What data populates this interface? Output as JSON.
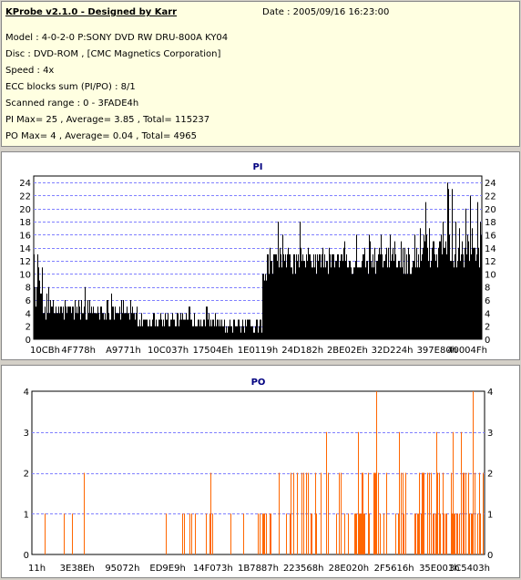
{
  "header": {
    "title": "KProbe v2.1.0 - Designed by Karr",
    "date": "Date : 2005/09/16 16:23:00",
    "lines": [
      "Model : 4-0-2-0 P:SONY    DVD RW DRU-800A  KY04",
      "Disc : DVD-ROM ,  [CMC Magnetics Corporation]",
      "Speed : 4x",
      "ECC blocks sum (PI/PO) : 8/1",
      "Scanned range : 0 - 3FADE4h",
      "PI Max= 25 , Average= 3.85 , Total= 115237",
      "PO Max= 4 , Average= 0.04 , Total= 4965"
    ]
  },
  "chart_data": [
    {
      "type": "bar",
      "title": "PI",
      "color": "#000000",
      "ylim": [
        0,
        25
      ],
      "yticks": [
        0,
        2,
        4,
        6,
        8,
        10,
        12,
        14,
        16,
        18,
        20,
        22,
        24
      ],
      "xticks": [
        "10CBh",
        "4F778h",
        "A9771h",
        "10C037h",
        "17504Eh",
        "1E0119h",
        "24D182h",
        "2BE02Eh",
        "32D224h",
        "397E80h",
        "40004Fh"
      ],
      "grid": true,
      "segments": [
        {
          "from": 0.0,
          "to": 0.02,
          "min": 4,
          "max": 11,
          "peak": 14
        },
        {
          "from": 0.02,
          "to": 0.22,
          "min": 3,
          "max": 6,
          "peak": 9
        },
        {
          "from": 0.22,
          "to": 0.42,
          "min": 2,
          "max": 4,
          "peak": 6
        },
        {
          "from": 0.42,
          "to": 0.51,
          "min": 1,
          "max": 3,
          "peak": 4
        },
        {
          "from": 0.51,
          "to": 0.52,
          "min": 8,
          "max": 10,
          "peak": 11
        },
        {
          "from": 0.52,
          "to": 0.64,
          "min": 10,
          "max": 14,
          "peak": 19
        },
        {
          "from": 0.64,
          "to": 0.86,
          "min": 10,
          "max": 14,
          "peak": 17
        },
        {
          "from": 0.86,
          "to": 1.0,
          "min": 11,
          "max": 17,
          "peak": 25
        }
      ]
    },
    {
      "type": "bar",
      "title": "PO",
      "color": "#ff6600",
      "ylim": [
        0,
        4
      ],
      "yticks": [
        0,
        1,
        2,
        3,
        4
      ],
      "xticks": [
        "11h",
        "3E38Eh",
        "95072h",
        "ED9E9h",
        "14F073h",
        "1B7887h",
        "223568h",
        "28E020h",
        "2F5616h",
        "35E001h",
        "3C5403h"
      ],
      "grid": true,
      "segments": [
        {
          "from": 0.0,
          "to": 0.12,
          "density": 0.12,
          "maxval": 1
        },
        {
          "from": 0.12,
          "to": 0.48,
          "density": 0.06,
          "maxval": 1
        },
        {
          "from": 0.48,
          "to": 0.55,
          "density": 0.25,
          "maxval": 1
        },
        {
          "from": 0.55,
          "to": 0.7,
          "density": 0.35,
          "maxval": 2
        },
        {
          "from": 0.7,
          "to": 0.85,
          "density": 0.45,
          "maxval": 3
        },
        {
          "from": 0.85,
          "to": 1.0,
          "density": 0.55,
          "maxval": 3
        }
      ],
      "peaks": [
        {
          "at": 0.115,
          "value": 2
        },
        {
          "at": 0.395,
          "value": 2
        },
        {
          "at": 0.545,
          "value": 2
        },
        {
          "at": 0.6,
          "value": 2
        },
        {
          "at": 0.65,
          "value": 3
        },
        {
          "at": 0.72,
          "value": 3
        },
        {
          "at": 0.76,
          "value": 4
        },
        {
          "at": 0.81,
          "value": 3
        },
        {
          "at": 0.93,
          "value": 3
        },
        {
          "at": 0.973,
          "value": 4
        }
      ]
    }
  ]
}
